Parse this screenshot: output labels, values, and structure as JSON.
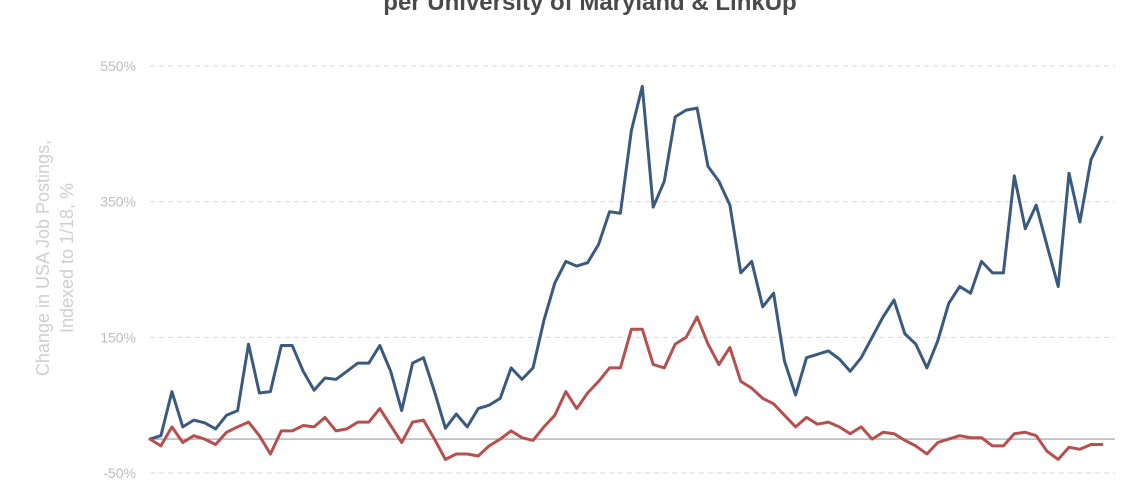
{
  "chart_data": {
    "type": "line",
    "title": "per University of Maryland & LinkUp",
    "ylabel_lines": [
      "Change in USA Job Postings,",
      "Indexed to 1/18, %"
    ],
    "yticks": [
      "550%",
      "350%",
      "150%",
      "-50%"
    ],
    "ytick_values": [
      550,
      350,
      150,
      -50
    ],
    "ylim": [
      -50,
      550
    ],
    "xlim": [
      2018.0,
      2025.35
    ],
    "grid": true,
    "series": [
      {
        "color": "#3b5a7f",
        "x": [
          2018.0,
          2018.083,
          2018.167,
          2018.25,
          2018.333,
          2018.417,
          2018.5,
          2018.583,
          2018.667,
          2018.75,
          2018.833,
          2018.917,
          2019.0,
          2019.083,
          2019.167,
          2019.25,
          2019.333,
          2019.417,
          2019.5,
          2019.583,
          2019.667,
          2019.75,
          2019.833,
          2019.917,
          2020.0,
          2020.083,
          2020.167,
          2020.25,
          2020.333,
          2020.417,
          2020.5,
          2020.583,
          2020.667,
          2020.75,
          2020.833,
          2020.917,
          2021.0,
          2021.083,
          2021.167,
          2021.25,
          2021.333,
          2021.417,
          2021.5,
          2021.583,
          2021.667,
          2021.75,
          2021.833,
          2021.917,
          2022.0,
          2022.083,
          2022.167,
          2022.25,
          2022.333,
          2022.417,
          2022.5,
          2022.583,
          2022.667,
          2022.75,
          2022.833,
          2022.917,
          2023.0,
          2023.083,
          2023.167,
          2023.25,
          2023.333,
          2023.417,
          2023.5,
          2023.583,
          2023.667,
          2023.75,
          2023.833,
          2023.917,
          2024.0,
          2024.083,
          2024.167,
          2024.25,
          2024.333,
          2024.417,
          2024.5,
          2024.583,
          2024.667,
          2024.75,
          2024.833,
          2024.917,
          2025.0,
          2025.083,
          2025.167,
          2025.25
        ],
        "y": [
          0,
          5,
          70,
          18,
          28,
          24,
          15,
          35,
          42,
          140,
          68,
          70,
          138,
          138,
          100,
          72,
          90,
          88,
          100,
          112,
          112,
          138,
          100,
          42,
          112,
          120,
          70,
          16,
          37,
          18,
          45,
          50,
          60,
          105,
          88,
          105,
          175,
          230,
          262,
          255,
          260,
          287,
          335,
          333,
          455,
          520,
          342,
          380,
          475,
          485,
          488,
          402,
          380,
          345,
          245,
          262,
          195,
          215,
          115,
          65,
          120,
          125,
          130,
          118,
          100,
          120,
          150,
          180,
          205,
          155,
          140,
          105,
          145,
          200,
          225,
          215,
          262,
          245,
          245,
          388,
          310,
          345,
          285,
          225,
          392,
          320,
          412,
          445
        ]
      },
      {
        "color": "#b5504f",
        "x": [
          2018.0,
          2018.083,
          2018.167,
          2018.25,
          2018.333,
          2018.417,
          2018.5,
          2018.583,
          2018.667,
          2018.75,
          2018.833,
          2018.917,
          2019.0,
          2019.083,
          2019.167,
          2019.25,
          2019.333,
          2019.417,
          2019.5,
          2019.583,
          2019.667,
          2019.75,
          2019.833,
          2019.917,
          2020.0,
          2020.083,
          2020.167,
          2020.25,
          2020.333,
          2020.417,
          2020.5,
          2020.583,
          2020.667,
          2020.75,
          2020.833,
          2020.917,
          2021.0,
          2021.083,
          2021.167,
          2021.25,
          2021.333,
          2021.417,
          2021.5,
          2021.583,
          2021.667,
          2021.75,
          2021.833,
          2021.917,
          2022.0,
          2022.083,
          2022.167,
          2022.25,
          2022.333,
          2022.417,
          2022.5,
          2022.583,
          2022.667,
          2022.75,
          2022.833,
          2022.917,
          2023.0,
          2023.083,
          2023.167,
          2023.25,
          2023.333,
          2023.417,
          2023.5,
          2023.583,
          2023.667,
          2023.75,
          2023.833,
          2023.917,
          2024.0,
          2024.083,
          2024.167,
          2024.25,
          2024.333,
          2024.417,
          2024.5,
          2024.583,
          2024.667,
          2024.75,
          2024.833,
          2024.917,
          2025.0,
          2025.083,
          2025.167,
          2025.25
        ],
        "y": [
          0,
          -10,
          18,
          -5,
          5,
          0,
          -8,
          10,
          18,
          25,
          5,
          -22,
          12,
          12,
          20,
          18,
          32,
          12,
          15,
          25,
          25,
          45,
          20,
          -5,
          25,
          28,
          0,
          -30,
          -22,
          -22,
          -25,
          -10,
          0,
          12,
          2,
          -2,
          18,
          35,
          70,
          45,
          68,
          85,
          105,
          105,
          162,
          162,
          110,
          105,
          140,
          150,
          180,
          140,
          110,
          135,
          85,
          75,
          60,
          52,
          35,
          18,
          32,
          22,
          25,
          18,
          8,
          18,
          0,
          10,
          8,
          -2,
          -10,
          -22,
          -5,
          0,
          5,
          2,
          2,
          -10,
          -10,
          8,
          10,
          5,
          -18,
          -30,
          -12,
          -15,
          -8,
          -8
        ]
      }
    ]
  }
}
